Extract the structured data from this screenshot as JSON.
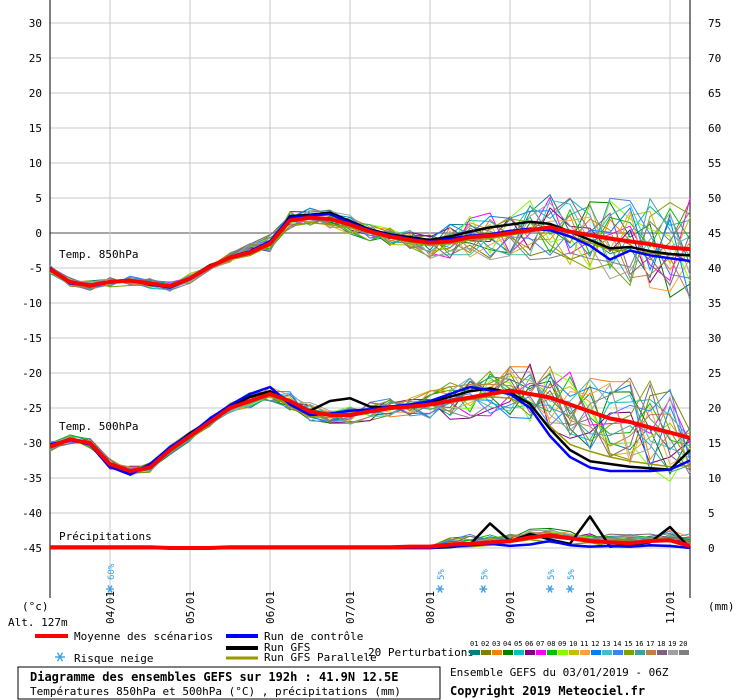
{
  "chart_data": {
    "type": "line",
    "title": "Diagramme des ensembles GEFS sur 192h : 41.9N 12.5E",
    "subtitle": "Températures 850hPa et 500hPa (°C) , précipitations (mm)",
    "altitude": "Alt. 127m",
    "ylabel_left": "(°c)",
    "ylabel_right": "(mm)",
    "ylim_left": [
      -45,
      30
    ],
    "ylim_right": [
      0,
      75
    ],
    "yticks_left": [
      30,
      25,
      20,
      15,
      10,
      5,
      0,
      -5,
      -10,
      -15,
      -20,
      -25,
      -30,
      -35,
      -40,
      -45
    ],
    "yticks_right": [
      75,
      70,
      65,
      60,
      55,
      50,
      45,
      40,
      35,
      30,
      25,
      20,
      15,
      10,
      5,
      0
    ],
    "xticks": [
      "04/01",
      "05/01",
      "06/01",
      "07/01",
      "08/01",
      "09/01",
      "10/01",
      "11/01"
    ],
    "x_hours": [
      0,
      6,
      12,
      18,
      24,
      30,
      36,
      42,
      48,
      54,
      60,
      66,
      72,
      78,
      84,
      90,
      96,
      102,
      108,
      114,
      120,
      126,
      132,
      138,
      144,
      150,
      156,
      162,
      168,
      174,
      180,
      186,
      192
    ],
    "panel_labels": {
      "t850": "Temp. 850hPa",
      "t500": "Temp. 500hPa",
      "precip": "Précipitations"
    },
    "series": [
      {
        "name": "Moyenne des scénarios",
        "panel": "t850",
        "color": "#ff0000",
        "values": [
          -5.2,
          -7.0,
          -7.5,
          -7.0,
          -6.8,
          -7.2,
          -7.6,
          -6.5,
          -4.8,
          -3.5,
          -2.8,
          -1.5,
          1.8,
          2.2,
          2.0,
          1.2,
          0.2,
          -0.5,
          -1.0,
          -1.4,
          -1.2,
          -0.6,
          -0.4,
          0.0,
          0.4,
          0.8,
          0.2,
          -0.3,
          -0.8,
          -1.2,
          -1.6,
          -2.1,
          -2.3
        ]
      },
      {
        "name": "Run de contrôle",
        "panel": "t850",
        "color": "#0000ff",
        "values": [
          -5.0,
          -7.2,
          -7.5,
          -7.0,
          -6.8,
          -7.3,
          -7.8,
          -6.6,
          -4.9,
          -3.4,
          -2.6,
          -1.2,
          2.2,
          2.5,
          2.7,
          1.5,
          0.4,
          -0.3,
          -0.8,
          -1.2,
          -0.8,
          -0.4,
          -0.2,
          0.3,
          0.6,
          0.4,
          -0.5,
          -1.8,
          -3.8,
          -2.5,
          -3.2,
          -3.6,
          -4.0
        ]
      },
      {
        "name": "Run GFS",
        "panel": "t850",
        "color": "#000000",
        "values": [
          -5.3,
          -7.1,
          -7.4,
          -6.9,
          -6.7,
          -7.4,
          -7.7,
          -6.4,
          -4.6,
          -3.6,
          -2.9,
          -1.6,
          2.4,
          2.6,
          2.9,
          1.7,
          0.5,
          -0.2,
          -0.6,
          -1.0,
          -0.5,
          0.2,
          0.8,
          1.2,
          1.6,
          1.3,
          0.2,
          -1.0,
          -2.2,
          -2.0,
          -2.6,
          -3.0,
          -3.2
        ]
      },
      {
        "name": "Run GFS Parallele",
        "panel": "t850",
        "color": "#999900",
        "values": [
          -5.1,
          -7.0,
          -7.6,
          -7.1,
          -6.9,
          -7.0,
          -7.5,
          -6.7,
          -5.0,
          -3.8,
          -3.2,
          -1.8,
          1.0,
          1.5,
          1.2,
          0.8,
          0.0,
          -0.7,
          -1.3,
          -1.8,
          -1.5,
          -1.0,
          -0.8,
          -0.3,
          0.2,
          0.5,
          -0.4,
          -1.4,
          -2.4,
          -2.6,
          -2.9,
          -3.1,
          -3.3
        ]
      },
      {
        "name": "Moyenne des scénarios",
        "panel": "t500",
        "color": "#ff0000",
        "values": [
          -30.5,
          -29.5,
          -30.0,
          -33.0,
          -34.0,
          -33.5,
          -31.0,
          -29.0,
          -27.0,
          -25.0,
          -24.0,
          -23.0,
          -24.0,
          -25.5,
          -26.0,
          -26.0,
          -25.5,
          -25.0,
          -24.8,
          -24.5,
          -24.0,
          -23.5,
          -23.0,
          -22.5,
          -23.0,
          -23.5,
          -24.5,
          -25.5,
          -26.5,
          -27.0,
          -27.8,
          -28.5,
          -29.3
        ]
      },
      {
        "name": "Run de contrôle",
        "panel": "t500",
        "color": "#0000ff",
        "values": [
          -30.2,
          -29.6,
          -30.2,
          -33.4,
          -34.5,
          -33.0,
          -30.6,
          -28.8,
          -26.5,
          -24.6,
          -23.0,
          -22.0,
          -24.5,
          -26.0,
          -25.8,
          -25.4,
          -25.2,
          -24.8,
          -24.5,
          -24.0,
          -23.0,
          -22.0,
          -22.5,
          -23.0,
          -25.0,
          -29.0,
          -32.0,
          -33.5,
          -34.0,
          -34.0,
          -34.0,
          -33.8,
          -32.5
        ]
      },
      {
        "name": "Run GFS",
        "panel": "t500",
        "color": "#000000",
        "values": [
          -30.4,
          -29.4,
          -30.1,
          -33.2,
          -34.2,
          -33.2,
          -30.8,
          -28.6,
          -26.8,
          -24.8,
          -23.4,
          -22.6,
          -24.0,
          -25.4,
          -24.0,
          -23.6,
          -24.8,
          -25.0,
          -24.6,
          -24.2,
          -23.4,
          -22.6,
          -22.2,
          -22.8,
          -24.4,
          -28.0,
          -31.0,
          -32.6,
          -33.0,
          -33.4,
          -33.6,
          -33.8,
          -31.0
        ]
      },
      {
        "name": "Run GFS Parallele",
        "panel": "t500",
        "color": "#999900",
        "values": [
          -30.6,
          -29.7,
          -29.9,
          -33.1,
          -33.9,
          -33.6,
          -31.2,
          -29.2,
          -27.2,
          -25.2,
          -24.2,
          -23.4,
          -24.6,
          -26.2,
          -26.4,
          -25.8,
          -25.6,
          -25.2,
          -24.8,
          -24.6,
          -24.2,
          -23.8,
          -23.4,
          -23.6,
          -24.8,
          -27.6,
          -30.2,
          -31.2,
          -32.0,
          -32.6,
          -33.0,
          -33.4,
          -33.2
        ]
      },
      {
        "name": "Moyenne des scénarios",
        "panel": "precip",
        "color": "#ff0000",
        "values": [
          0.1,
          0.1,
          0.1,
          0.1,
          0.1,
          0.1,
          0.0,
          0.0,
          0.0,
          0.1,
          0.1,
          0.1,
          0.1,
          0.1,
          0.1,
          0.1,
          0.1,
          0.1,
          0.2,
          0.2,
          0.5,
          0.6,
          0.8,
          1.0,
          1.5,
          1.8,
          1.4,
          1.0,
          0.8,
          0.7,
          1.0,
          1.1,
          0.3
        ]
      },
      {
        "name": "Run de contrôle",
        "panel": "precip",
        "color": "#0000ff",
        "values": [
          0.0,
          0.0,
          0.0,
          0.0,
          0.0,
          0.0,
          0.0,
          0.0,
          0.0,
          0.0,
          0.0,
          0.0,
          0.0,
          0.0,
          0.0,
          0.0,
          0.0,
          0.0,
          0.0,
          0.0,
          0.2,
          0.4,
          0.6,
          0.3,
          0.5,
          1.0,
          0.4,
          0.2,
          0.3,
          0.2,
          0.4,
          0.3,
          0.0
        ]
      },
      {
        "name": "Run GFS",
        "panel": "precip",
        "color": "#000000",
        "values": [
          0.0,
          0.0,
          0.0,
          0.0,
          0.0,
          0.0,
          0.0,
          0.0,
          0.0,
          0.0,
          0.0,
          0.0,
          0.0,
          0.0,
          0.0,
          0.0,
          0.0,
          0.0,
          0.0,
          0.0,
          0.1,
          0.5,
          3.5,
          1.0,
          2.0,
          1.2,
          0.6,
          4.5,
          0.2,
          0.5,
          0.8,
          3.0,
          0.0
        ]
      },
      {
        "name": "Run GFS Parallele",
        "panel": "precip",
        "color": "#999900",
        "values": [
          0.0,
          0.0,
          0.0,
          0.0,
          0.0,
          0.0,
          0.0,
          0.0,
          0.0,
          0.0,
          0.0,
          0.0,
          0.0,
          0.0,
          0.0,
          0.0,
          0.0,
          0.0,
          0.0,
          0.0,
          0.1,
          0.2,
          0.4,
          0.8,
          1.2,
          0.8,
          0.5,
          0.8,
          0.2,
          0.1,
          0.3,
          0.2,
          0.0
        ]
      }
    ],
    "perturbation_colors": [
      "#008080",
      "#808000",
      "#ff8000",
      "#008000",
      "#00c0c0",
      "#800080",
      "#ff00ff",
      "#00c000",
      "#80ff00",
      "#c0c000",
      "#ffa040",
      "#0080ff",
      "#40c0c0",
      "#4080ff",
      "#80a000",
      "#40a0a0",
      "#c08040",
      "#806080",
      "#a0a0a0",
      "#808080"
    ],
    "snow_risk": [
      {
        "hour": 18,
        "label": "60%"
      },
      {
        "hour": 117,
        "label": "5%"
      },
      {
        "hour": 130,
        "label": "5%"
      },
      {
        "hour": 150,
        "label": "5%"
      },
      {
        "hour": 156,
        "label": "5%"
      }
    ]
  },
  "legend": {
    "mean": "Moyenne des scénarios",
    "control": "Run de contrôle",
    "gfs": "Run GFS",
    "gfs_parallel": "Run GFS Parallele",
    "snow": "Risque neige",
    "perturbations": "20 Perturbations",
    "pert_numbers": [
      "01",
      "02",
      "03",
      "04",
      "05",
      "06",
      "07",
      "08",
      "09",
      "10",
      "11",
      "12",
      "13",
      "14",
      "15",
      "16",
      "17",
      "18",
      "19",
      "20"
    ]
  },
  "footer": {
    "run_info": "Ensemble GEFS du 03/01/2019 - 06Z",
    "copyright": "Copyright 2019 Meteociel.fr"
  }
}
